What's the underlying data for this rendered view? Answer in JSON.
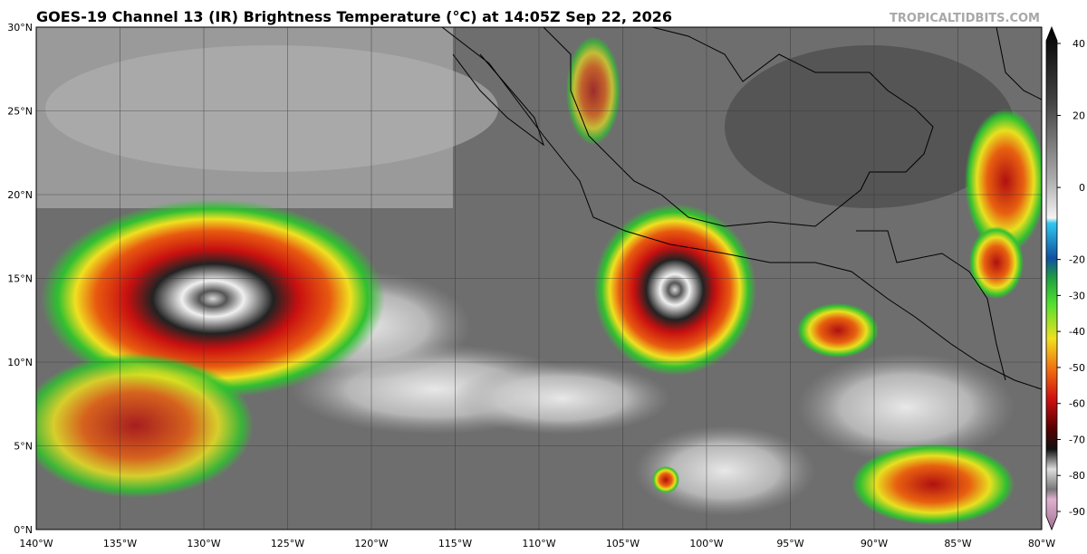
{
  "map": {
    "title": "GOES-19 Channel 13 (IR) Brightness Temperature (°C) at 14:05Z Sep 22, 2026",
    "credit": "TROPICALTIDBITS.COM",
    "lat_labels": [
      "0°N",
      "5°N",
      "10°N",
      "15°N",
      "20°N",
      "25°N",
      "30°N"
    ],
    "lon_labels": [
      "140°W",
      "135°W",
      "130°W",
      "125°W",
      "120°W",
      "115°W",
      "110°W",
      "105°W",
      "100°W",
      "95°W",
      "90°W",
      "85°W",
      "80°W"
    ],
    "colorbar": {
      "ticks": [
        40,
        20,
        0,
        -20,
        -30,
        -40,
        -50,
        -60,
        -70,
        -80,
        -90
      ]
    }
  }
}
